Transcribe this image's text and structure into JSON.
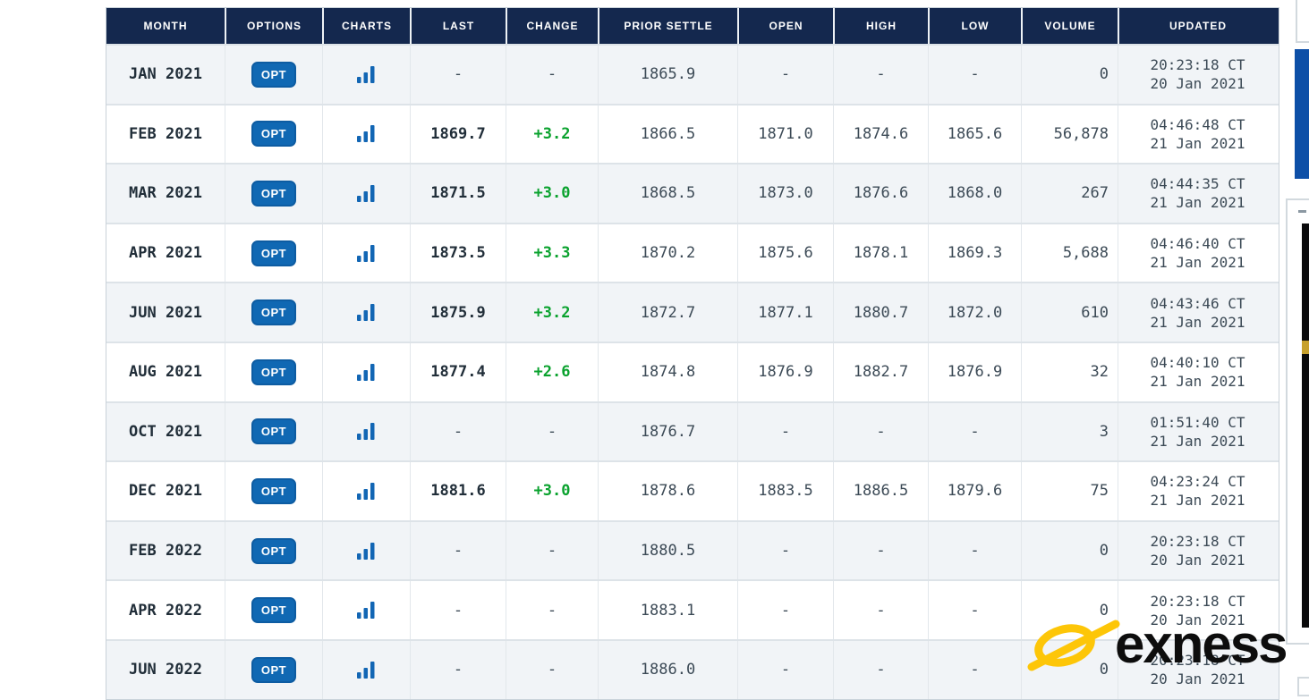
{
  "colors": {
    "header_bg": "#14284e",
    "row_alt_bg": "#f1f4f7",
    "accent_blue": "#1068b3",
    "scrollbar_blue": "#0d4fa7",
    "positive_green": "#0aa22e",
    "logo_gold": "#fdc608"
  },
  "table": {
    "opt_label": "OPT",
    "columns": [
      {
        "key": "month",
        "label": "MONTH"
      },
      {
        "key": "options",
        "label": "OPTIONS"
      },
      {
        "key": "charts",
        "label": "CHARTS"
      },
      {
        "key": "last",
        "label": "LAST"
      },
      {
        "key": "change",
        "label": "CHANGE"
      },
      {
        "key": "prior_settle",
        "label": "PRIOR SETTLE"
      },
      {
        "key": "open",
        "label": "OPEN"
      },
      {
        "key": "high",
        "label": "HIGH"
      },
      {
        "key": "low",
        "label": "LOW"
      },
      {
        "key": "volume",
        "label": "VOLUME"
      },
      {
        "key": "updated",
        "label": "UPDATED"
      }
    ],
    "rows": [
      {
        "month": "JAN 2021",
        "last": "-",
        "change": "-",
        "prior_settle": "1865.9",
        "open": "-",
        "high": "-",
        "low": "-",
        "volume": "0",
        "updated_time": "20:23:18 CT",
        "updated_date": "20 Jan 2021"
      },
      {
        "month": "FEB 2021",
        "last": "1869.7",
        "change": "+3.2",
        "prior_settle": "1866.5",
        "open": "1871.0",
        "high": "1874.6",
        "low": "1865.6",
        "volume": "56,878",
        "updated_time": "04:46:48 CT",
        "updated_date": "21 Jan 2021"
      },
      {
        "month": "MAR 2021",
        "last": "1871.5",
        "change": "+3.0",
        "prior_settle": "1868.5",
        "open": "1873.0",
        "high": "1876.6",
        "low": "1868.0",
        "volume": "267",
        "updated_time": "04:44:35 CT",
        "updated_date": "21 Jan 2021"
      },
      {
        "month": "APR 2021",
        "last": "1873.5",
        "change": "+3.3",
        "prior_settle": "1870.2",
        "open": "1875.6",
        "high": "1878.1",
        "low": "1869.3",
        "volume": "5,688",
        "updated_time": "04:46:40 CT",
        "updated_date": "21 Jan 2021"
      },
      {
        "month": "JUN 2021",
        "last": "1875.9",
        "change": "+3.2",
        "prior_settle": "1872.7",
        "open": "1877.1",
        "high": "1880.7",
        "low": "1872.0",
        "volume": "610",
        "updated_time": "04:43:46 CT",
        "updated_date": "21 Jan 2021"
      },
      {
        "month": "AUG 2021",
        "last": "1877.4",
        "change": "+2.6",
        "prior_settle": "1874.8",
        "open": "1876.9",
        "high": "1882.7",
        "low": "1876.9",
        "volume": "32",
        "updated_time": "04:40:10 CT",
        "updated_date": "21 Jan 2021"
      },
      {
        "month": "OCT 2021",
        "last": "-",
        "change": "-",
        "prior_settle": "1876.7",
        "open": "-",
        "high": "-",
        "low": "-",
        "volume": "3",
        "updated_time": "01:51:40 CT",
        "updated_date": "21 Jan 2021"
      },
      {
        "month": "DEC 2021",
        "last": "1881.6",
        "change": "+3.0",
        "prior_settle": "1878.6",
        "open": "1883.5",
        "high": "1886.5",
        "low": "1879.6",
        "volume": "75",
        "updated_time": "04:23:24 CT",
        "updated_date": "21 Jan 2021"
      },
      {
        "month": "FEB 2022",
        "last": "-",
        "change": "-",
        "prior_settle": "1880.5",
        "open": "-",
        "high": "-",
        "low": "-",
        "volume": "0",
        "updated_time": "20:23:18 CT",
        "updated_date": "20 Jan 2021"
      },
      {
        "month": "APR 2022",
        "last": "-",
        "change": "-",
        "prior_settle": "1883.1",
        "open": "-",
        "high": "-",
        "low": "-",
        "volume": "0",
        "updated_time": "20:23:18 CT",
        "updated_date": "20 Jan 2021"
      },
      {
        "month": "JUN 2022",
        "last": "-",
        "change": "-",
        "prior_settle": "1886.0",
        "open": "-",
        "high": "-",
        "low": "-",
        "volume": "0",
        "updated_time": "20:23:18 CT",
        "updated_date": "20 Jan 2021"
      }
    ]
  },
  "logo": {
    "text": "exness"
  }
}
